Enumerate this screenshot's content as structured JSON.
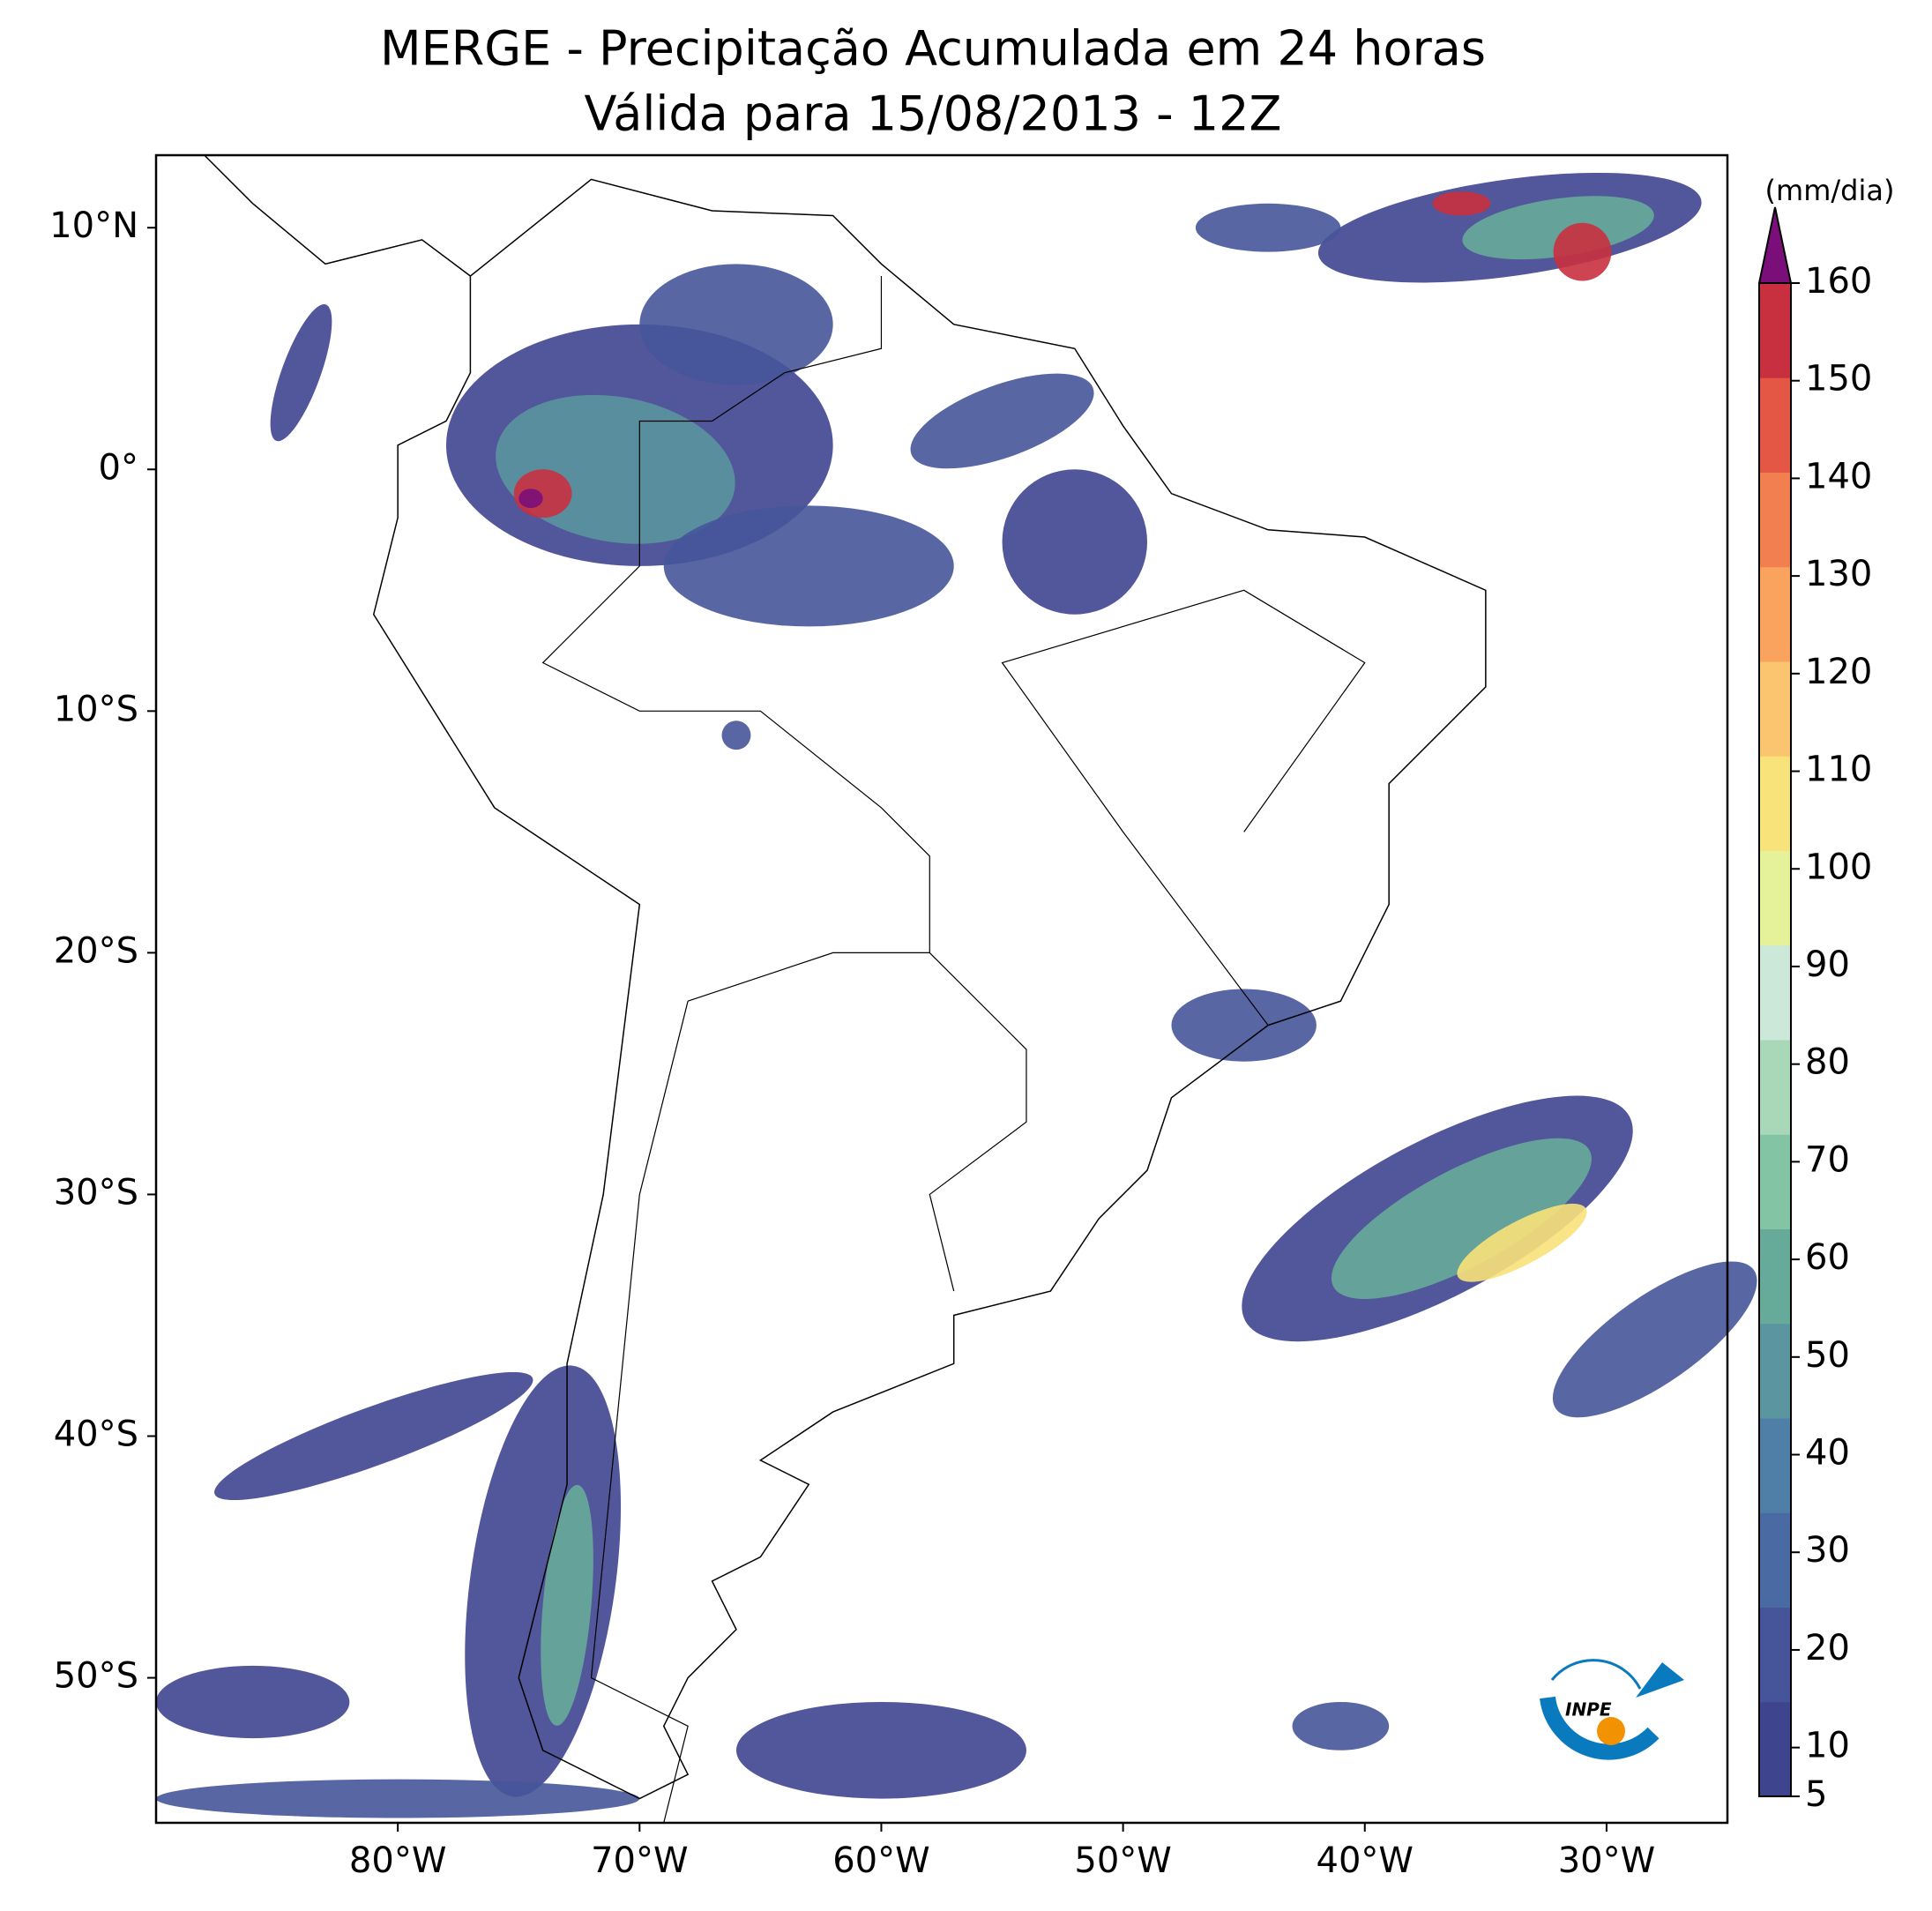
{
  "map": {
    "title": "MERGE - Precipitação Acumulada em 24 horas",
    "subtitle": "Válida para 15/08/2013 - 12Z",
    "xlim": [
      -90,
      -25
    ],
    "ylim": [
      -56,
      13
    ],
    "xticks": [
      {
        "value": -80,
        "label": "80°W"
      },
      {
        "value": -70,
        "label": "70°W"
      },
      {
        "value": -60,
        "label": "60°W"
      },
      {
        "value": -50,
        "label": "50°W"
      },
      {
        "value": -40,
        "label": "40°W"
      },
      {
        "value": -30,
        "label": "30°W"
      }
    ],
    "yticks": [
      {
        "value": 10,
        "label": "10°N"
      },
      {
        "value": 0,
        "label": "0°"
      },
      {
        "value": -10,
        "label": "10°S"
      },
      {
        "value": -20,
        "label": "20°S"
      },
      {
        "value": -30,
        "label": "30°S"
      },
      {
        "value": -40,
        "label": "40°S"
      },
      {
        "value": -50,
        "label": "50°S"
      }
    ],
    "colorbar": {
      "label": "(mm/dia)",
      "lim": [
        5,
        160
      ],
      "ticks": [
        5,
        10,
        20,
        30,
        40,
        50,
        60,
        70,
        80,
        90,
        100,
        110,
        120,
        130,
        140,
        150,
        160
      ],
      "colors": [
        "#3f448f",
        "#46559a",
        "#4a6aa3",
        "#4f7fa6",
        "#5a95a0",
        "#66ab9a",
        "#82c4a4",
        "#a9d8b8",
        "#cbe8d8",
        "#e6f29a",
        "#f8e27a",
        "#fbc46e",
        "#f9a35f",
        "#f27f4f",
        "#e45745",
        "#c9303f"
      ],
      "over_color": "#7a0f7a"
    }
  }
}
